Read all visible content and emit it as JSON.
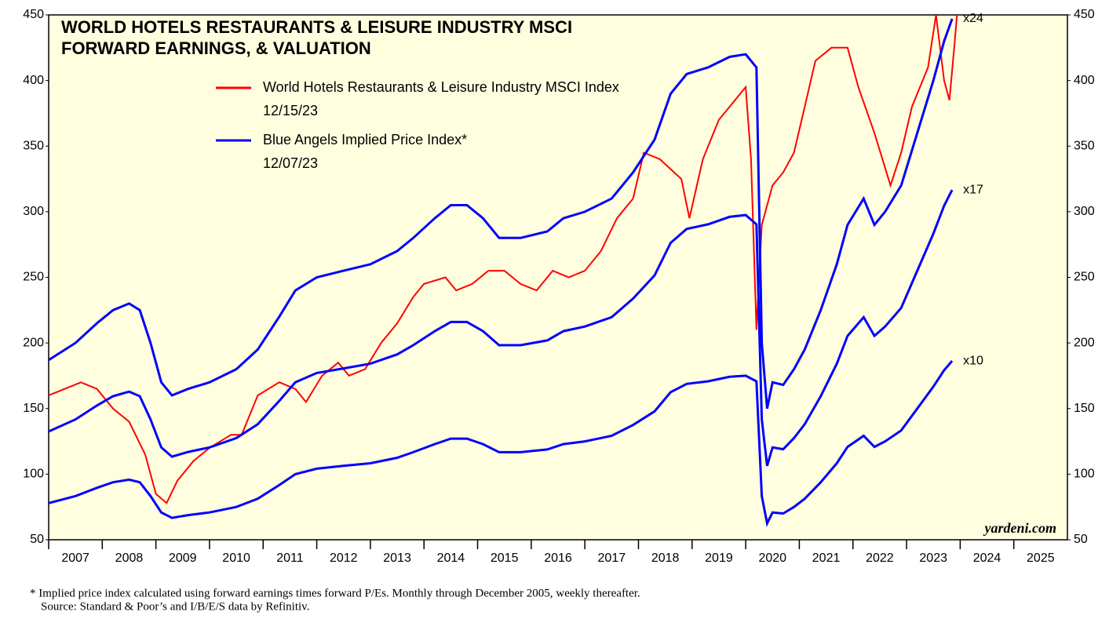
{
  "chart_data": {
    "type": "line",
    "title": [
      "WORLD HOTELS RESTAURANTS & LEISURE INDUSTRY MSCI",
      "FORWARD EARNINGS, & VALUATION"
    ],
    "xlim": [
      2007,
      2026
    ],
    "xticks": [
      2007,
      2008,
      2009,
      2010,
      2011,
      2012,
      2013,
      2014,
      2015,
      2016,
      2017,
      2018,
      2019,
      2020,
      2021,
      2022,
      2023,
      2024,
      2025
    ],
    "ylim": [
      50,
      450
    ],
    "yticks": [
      50,
      100,
      150,
      200,
      250,
      300,
      350,
      400,
      450
    ],
    "background": "#ffffe0",
    "series": [
      {
        "name": "World Hotels Restaurants & Leisure Industry MSCI Index",
        "date": "12/15/23",
        "color": "#ff0000",
        "x": [
          2007.0,
          2007.3,
          2007.6,
          2007.9,
          2008.2,
          2008.5,
          2008.8,
          2009.0,
          2009.2,
          2009.4,
          2009.7,
          2010.0,
          2010.4,
          2010.6,
          2010.9,
          2011.3,
          2011.6,
          2011.8,
          2012.1,
          2012.4,
          2012.6,
          2012.9,
          2013.2,
          2013.5,
          2013.8,
          2014.0,
          2014.4,
          2014.6,
          2014.9,
          2015.2,
          2015.5,
          2015.8,
          2016.1,
          2016.4,
          2016.7,
          2017.0,
          2017.3,
          2017.6,
          2017.9,
          2018.1,
          2018.4,
          2018.8,
          2018.95,
          2019.2,
          2019.5,
          2019.8,
          2020.0,
          2020.1,
          2020.2,
          2020.3,
          2020.5,
          2020.7,
          2020.9,
          2021.1,
          2021.3,
          2021.6,
          2021.9,
          2022.1,
          2022.4,
          2022.7,
          2022.9,
          2023.1,
          2023.4,
          2023.55,
          2023.7,
          2023.8,
          2023.9,
          2023.95
        ],
        "values": [
          160,
          165,
          170,
          165,
          150,
          140,
          115,
          85,
          78,
          95,
          110,
          120,
          130,
          130,
          160,
          170,
          165,
          155,
          175,
          185,
          175,
          180,
          200,
          215,
          235,
          245,
          250,
          240,
          245,
          255,
          255,
          245,
          240,
          255,
          250,
          255,
          270,
          295,
          310,
          345,
          340,
          325,
          295,
          340,
          370,
          385,
          395,
          340,
          210,
          290,
          320,
          330,
          345,
          380,
          415,
          425,
          425,
          395,
          360,
          320,
          345,
          380,
          410,
          450,
          400,
          385,
          430,
          455
        ]
      },
      {
        "name": "Blue Angels Implied Price Index*",
        "date": "12/07/23",
        "label": "x24",
        "color": "#0000ff",
        "x": [
          2007.0,
          2007.5,
          2007.9,
          2008.2,
          2008.5,
          2008.7,
          2008.9,
          2009.1,
          2009.3,
          2009.6,
          2010.0,
          2010.5,
          2010.9,
          2011.3,
          2011.6,
          2012.0,
          2012.5,
          2013.0,
          2013.5,
          2013.8,
          2014.2,
          2014.5,
          2014.8,
          2015.1,
          2015.4,
          2015.8,
          2016.3,
          2016.6,
          2017.0,
          2017.5,
          2017.9,
          2018.3,
          2018.6,
          2018.9,
          2019.3,
          2019.7,
          2020.0,
          2020.2,
          2020.3,
          2020.4,
          2020.5,
          2020.7,
          2020.9,
          2021.1,
          2021.4,
          2021.7,
          2021.9,
          2022.2,
          2022.4,
          2022.6,
          2022.9,
          2023.2,
          2023.5,
          2023.7,
          2023.85
        ],
        "values": [
          187,
          200,
          215,
          225,
          230,
          225,
          200,
          170,
          160,
          165,
          170,
          180,
          195,
          220,
          240,
          250,
          255,
          260,
          270,
          280,
          295,
          305,
          305,
          295,
          280,
          280,
          285,
          295,
          300,
          310,
          330,
          355,
          390,
          405,
          410,
          418,
          420,
          410,
          200,
          150,
          170,
          168,
          180,
          195,
          225,
          260,
          290,
          310,
          290,
          300,
          320,
          360,
          400,
          430,
          447
        ]
      },
      {
        "label": "x17",
        "color": "#0000ff",
        "x": [
          2007.0,
          2007.5,
          2007.9,
          2008.2,
          2008.5,
          2008.7,
          2008.9,
          2009.1,
          2009.3,
          2009.6,
          2010.0,
          2010.5,
          2010.9,
          2011.3,
          2011.6,
          2012.0,
          2012.5,
          2013.0,
          2013.5,
          2013.8,
          2014.2,
          2014.5,
          2014.8,
          2015.1,
          2015.4,
          2015.8,
          2016.3,
          2016.6,
          2017.0,
          2017.5,
          2017.9,
          2018.3,
          2018.6,
          2018.9,
          2019.3,
          2019.7,
          2020.0,
          2020.2,
          2020.3,
          2020.4,
          2020.5,
          2020.7,
          2020.9,
          2021.1,
          2021.4,
          2021.7,
          2021.9,
          2022.2,
          2022.4,
          2022.6,
          2022.9,
          2023.2,
          2023.5,
          2023.7,
          2023.85
        ],
        "values": [
          132.5,
          141.7,
          152.3,
          159.4,
          162.9,
          159.4,
          141.7,
          120.4,
          113.3,
          116.9,
          120.4,
          127.5,
          138.1,
          155.8,
          170,
          177.1,
          180.6,
          184.2,
          191.3,
          198.3,
          209,
          216,
          216,
          209,
          198.3,
          198.3,
          201.9,
          209,
          212.5,
          219.6,
          233.8,
          251.5,
          276.3,
          286.9,
          290.4,
          296.1,
          297.5,
          290.4,
          141.7,
          106.3,
          120.4,
          119,
          127.5,
          138.1,
          159.4,
          184.2,
          205.4,
          219.6,
          205.4,
          212.5,
          226.7,
          255,
          283.3,
          304.6,
          316.6
        ]
      },
      {
        "label": "x10",
        "color": "#0000ff",
        "x": [
          2007.0,
          2007.5,
          2007.9,
          2008.2,
          2008.5,
          2008.7,
          2008.9,
          2009.1,
          2009.3,
          2009.6,
          2010.0,
          2010.5,
          2010.9,
          2011.3,
          2011.6,
          2012.0,
          2012.5,
          2013.0,
          2013.5,
          2013.8,
          2014.2,
          2014.5,
          2014.8,
          2015.1,
          2015.4,
          2015.8,
          2016.3,
          2016.6,
          2017.0,
          2017.5,
          2017.9,
          2018.3,
          2018.6,
          2018.9,
          2019.3,
          2019.7,
          2020.0,
          2020.2,
          2020.3,
          2020.4,
          2020.5,
          2020.7,
          2020.9,
          2021.1,
          2021.4,
          2021.7,
          2021.9,
          2022.2,
          2022.4,
          2022.6,
          2022.9,
          2023.2,
          2023.5,
          2023.7,
          2023.85
        ],
        "values": [
          77.9,
          83.3,
          89.6,
          93.8,
          95.8,
          93.8,
          83.3,
          70.8,
          66.7,
          68.8,
          70.8,
          75,
          81.3,
          91.7,
          100,
          104.2,
          106.3,
          108.3,
          112.5,
          116.7,
          122.9,
          127.1,
          127.1,
          122.9,
          116.7,
          116.7,
          118.8,
          122.9,
          125,
          129.2,
          137.5,
          147.9,
          162.5,
          168.8,
          170.8,
          174.2,
          175,
          170.8,
          83.3,
          62.5,
          70.8,
          70,
          75,
          81.3,
          93.8,
          108.3,
          120.8,
          129.2,
          120.8,
          125,
          133.3,
          150,
          166.7,
          179.2,
          186.3
        ]
      }
    ],
    "watermark": "yardeni.com",
    "footnote": "*  Implied price index calculated using forward earnings times forward P/Es. Monthly through December 2005, weekly thereafter.",
    "source": "Source: Standard & Poor’s and I/B/E/S data by Refinitiv."
  }
}
